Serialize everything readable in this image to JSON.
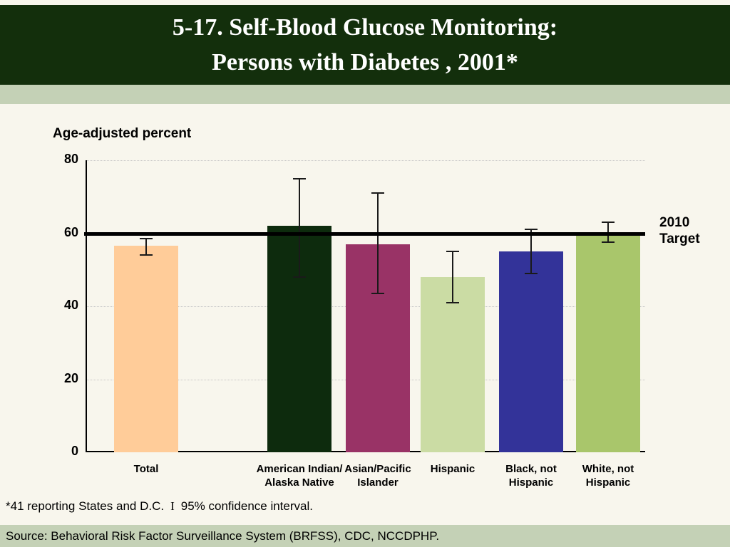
{
  "slide": {
    "title_line1": "5-17.  Self-Blood Glucose Monitoring:",
    "title_line2": "Persons with Diabetes , 2001*",
    "footnote": {
      "prefix": "*41 reporting States and D.C.",
      "ci_symbol": "I",
      "suffix": "95% confidence interval."
    },
    "source": "Source: Behavioral Risk Factor Surveillance System (BRFSS), CDC, NCCDPHP."
  },
  "chart_data": {
    "type": "bar",
    "title": "Age-adjusted percent",
    "xlabel": "",
    "ylabel": "Age-adjusted percent",
    "ylim": [
      0,
      80
    ],
    "yticks": [
      0,
      20,
      40,
      60,
      80
    ],
    "grid": "horizontal dotted",
    "legend": "none",
    "target_line": {
      "value": 60,
      "label": "2010 Target",
      "label_line1": "2010",
      "label_line2": "Target"
    },
    "categories": [
      "Total",
      "American Indian/\nAlaska Native",
      "Asian/Pacific\nIslander",
      "Hispanic",
      "Black, not\nHispanic",
      "White, not\nHispanic"
    ],
    "series": [
      {
        "name": "Age-adjusted percent",
        "values": [
          56.5,
          62,
          57,
          48,
          55,
          60
        ],
        "ci_low": [
          54,
          48,
          43.5,
          41,
          49,
          57.5
        ],
        "ci_high": [
          58.5,
          75,
          71,
          55,
          61,
          63
        ]
      }
    ],
    "bar_colors": [
      "#FFCC99",
      "#0D2B0D",
      "#993366",
      "#CBDCA4",
      "#333399",
      "#A9C66B"
    ],
    "error_bar_color": "#1A1A1A"
  },
  "colors": {
    "header_bg": "#132F0C",
    "header_text": "#FFFFFF",
    "band_bg": "#C4D1B6",
    "page_bg": "#F8F6ED",
    "target_line": "#000000",
    "gridline": "#C6C6C6"
  }
}
